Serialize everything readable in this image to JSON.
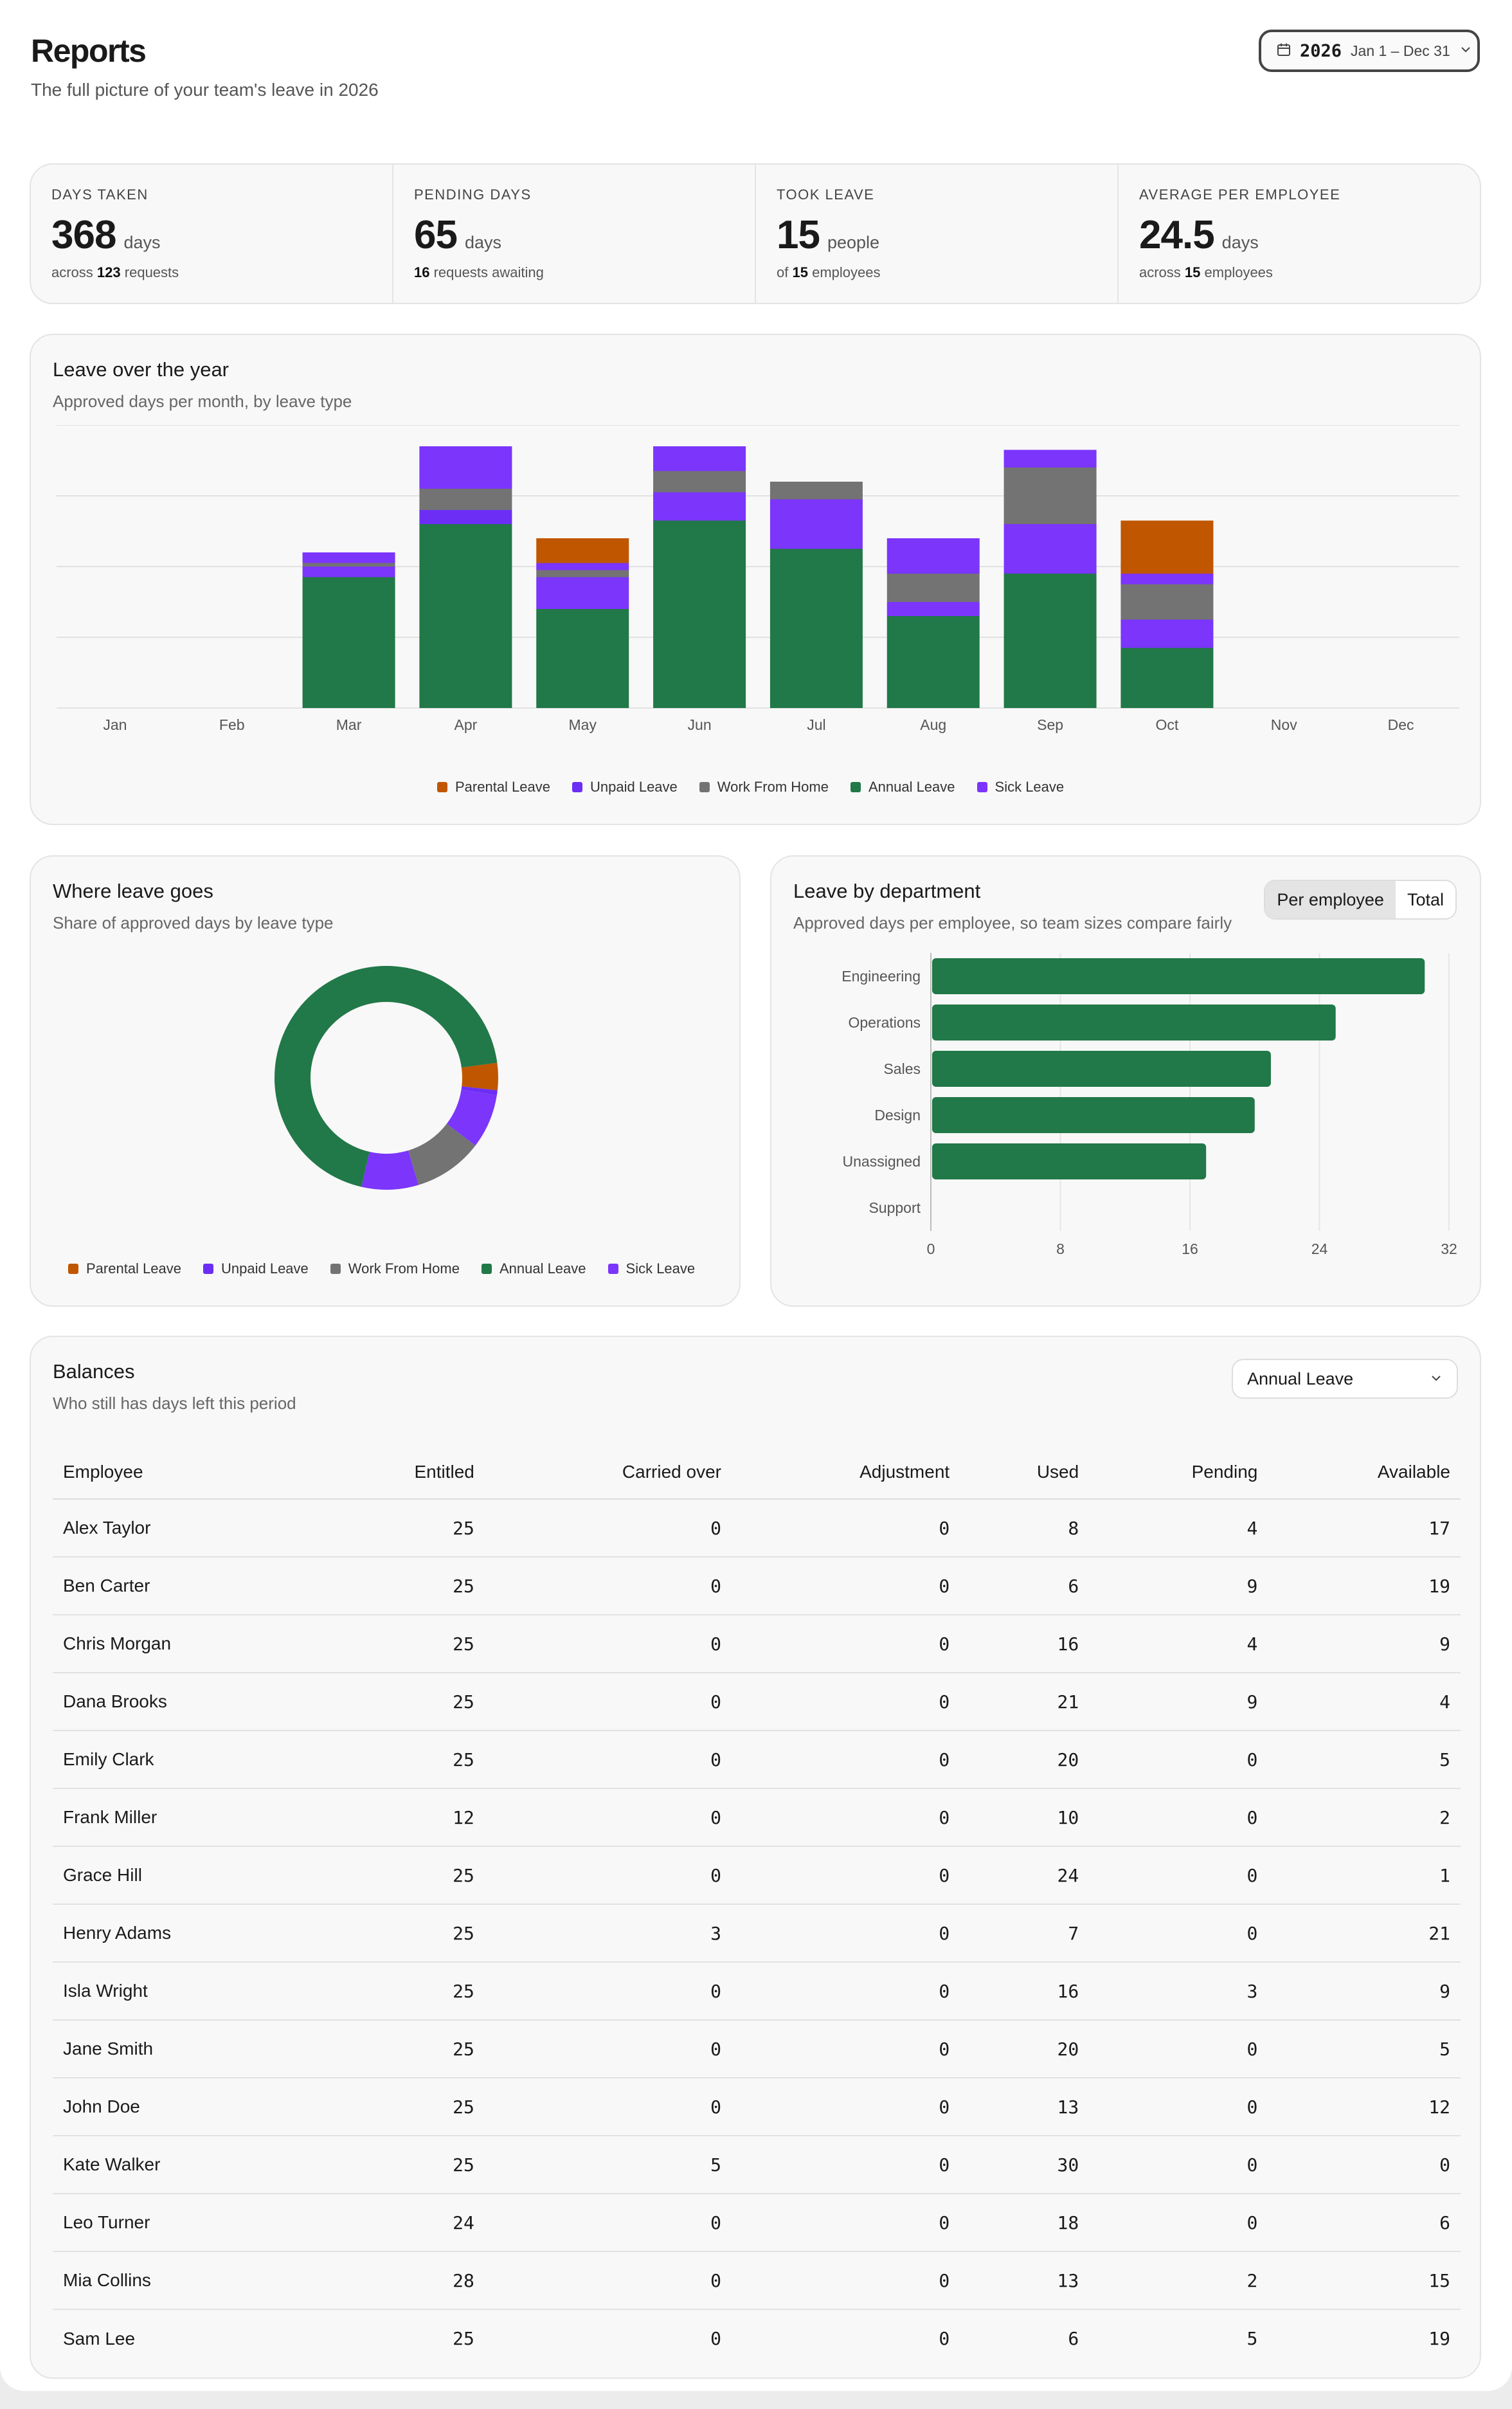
{
  "header": {
    "title": "Reports",
    "subtitle": "The full picture of your team's leave in 2026",
    "date_year": "2026",
    "date_range": "Jan 1 – Dec 31"
  },
  "stats": [
    {
      "label": "DAYS TAKEN",
      "value": "368",
      "unit": "days",
      "sub_pre": "across",
      "sub_bold": "123",
      "sub_post": "requests"
    },
    {
      "label": "PENDING DAYS",
      "value": "65",
      "unit": "days",
      "sub_pre": "",
      "sub_bold": "16",
      "sub_post": "requests awaiting"
    },
    {
      "label": "TOOK LEAVE",
      "value": "15",
      "unit": "people",
      "sub_pre": "of",
      "sub_bold": "15",
      "sub_post": "employees"
    },
    {
      "label": "AVERAGE PER EMPLOYEE",
      "value": "24.5",
      "unit": "days",
      "sub_pre": "across",
      "sub_bold": "15",
      "sub_post": "employees"
    }
  ],
  "colors": {
    "parental": "#c05600",
    "unpaid": "#6c2ef5",
    "wfh": "#737373",
    "annual": "#217848",
    "sick": "#7b35fb"
  },
  "legend": [
    {
      "name": "Parental Leave",
      "key": "parental"
    },
    {
      "name": "Unpaid Leave",
      "key": "unpaid"
    },
    {
      "name": "Work From Home",
      "key": "wfh"
    },
    {
      "name": "Annual Leave",
      "key": "annual"
    },
    {
      "name": "Sick Leave",
      "key": "sick"
    }
  ],
  "year_card": {
    "title": "Leave over the year",
    "subtitle": "Approved days per month, by leave type"
  },
  "donut_card": {
    "title": "Where leave goes",
    "subtitle": "Share of approved days by leave type"
  },
  "dept_card": {
    "title": "Leave by department",
    "subtitle": "Approved days per employee, so team sizes compare fairly",
    "toggle": [
      "Per employee",
      "Total"
    ]
  },
  "chart_data": [
    {
      "type": "bar",
      "stacked": true,
      "categories": [
        "Jan",
        "Feb",
        "Mar",
        "Apr",
        "May",
        "Jun",
        "Jul",
        "Aug",
        "Sep",
        "Oct",
        "Nov",
        "Dec"
      ],
      "series": [
        {
          "name": "Annual Leave",
          "key": "annual",
          "values": [
            0,
            0,
            18.5,
            26,
            14,
            26.5,
            22.5,
            13,
            19,
            8.5,
            0,
            0
          ]
        },
        {
          "name": "Unpaid Leave",
          "key": "unpaid",
          "values": [
            0,
            0,
            0,
            2,
            0,
            0,
            0,
            0,
            0,
            0,
            0,
            0
          ]
        },
        {
          "name": "Sick Leave",
          "key": "sick",
          "values": [
            0,
            0,
            1.5,
            0,
            4.5,
            4,
            7,
            2,
            7,
            4,
            0,
            0
          ]
        },
        {
          "name": "Work From Home",
          "key": "wfh",
          "values": [
            0,
            0,
            0.5,
            3,
            1,
            3,
            2.5,
            4,
            8,
            5,
            0,
            0
          ]
        },
        {
          "name": "Sick Leave",
          "key": "sick",
          "values": [
            0,
            0,
            1.5,
            6,
            1,
            3.5,
            0,
            5,
            2.5,
            1.5,
            0,
            0
          ]
        },
        {
          "name": "Parental Leave",
          "key": "parental",
          "values": [
            0,
            0,
            0,
            0,
            3.5,
            0,
            0,
            0,
            0,
            7.5,
            0,
            0
          ]
        }
      ],
      "grid": true,
      "ylim": [
        0,
        40
      ]
    },
    {
      "type": "pie",
      "donut": true,
      "labels": [
        "Parental Leave",
        "Unpaid Leave",
        "Work From Home",
        "Annual Leave",
        "Sick Leave"
      ],
      "keys": [
        "parental",
        "unpaid",
        "wfh",
        "annual",
        "sick"
      ],
      "values": [
        11,
        2,
        28,
        194,
        45
      ],
      "slices_clockwise_from_top": [
        {
          "key": "annual",
          "value": 64
        },
        {
          "key": "parental",
          "value": 11
        },
        {
          "key": "unpaid",
          "value": 2
        },
        {
          "key": "sick",
          "value": 22
        },
        {
          "key": "wfh",
          "value": 28
        },
        {
          "key": "sick",
          "value": 23
        },
        {
          "key": "annual",
          "value": 130
        }
      ]
    },
    {
      "type": "bar",
      "orientation": "horizontal",
      "categories": [
        "Engineering",
        "Operations",
        "Sales",
        "Design",
        "Unassigned",
        "Support"
      ],
      "values": [
        30.5,
        25,
        21,
        20,
        17,
        0
      ],
      "xticks": [
        0,
        8,
        16,
        24,
        32
      ],
      "xlim": [
        0,
        32
      ],
      "grid": true
    }
  ],
  "balances": {
    "title": "Balances",
    "subtitle": "Who still has days left this period",
    "filter": "Annual Leave",
    "columns": [
      "Employee",
      "Entitled",
      "Carried over",
      "Adjustment",
      "Used",
      "Pending",
      "Available"
    ],
    "rows": [
      [
        "Alex Taylor",
        "25",
        "0",
        "0",
        "8",
        "4",
        "17"
      ],
      [
        "Ben Carter",
        "25",
        "0",
        "0",
        "6",
        "9",
        "19"
      ],
      [
        "Chris Morgan",
        "25",
        "0",
        "0",
        "16",
        "4",
        "9"
      ],
      [
        "Dana Brooks",
        "25",
        "0",
        "0",
        "21",
        "9",
        "4"
      ],
      [
        "Emily Clark",
        "25",
        "0",
        "0",
        "20",
        "0",
        "5"
      ],
      [
        "Frank Miller",
        "12",
        "0",
        "0",
        "10",
        "0",
        "2"
      ],
      [
        "Grace Hill",
        "25",
        "0",
        "0",
        "24",
        "0",
        "1"
      ],
      [
        "Henry Adams",
        "25",
        "3",
        "0",
        "7",
        "0",
        "21"
      ],
      [
        "Isla Wright",
        "25",
        "0",
        "0",
        "16",
        "3",
        "9"
      ],
      [
        "Jane Smith",
        "25",
        "0",
        "0",
        "20",
        "0",
        "5"
      ],
      [
        "John Doe",
        "25",
        "0",
        "0",
        "13",
        "0",
        "12"
      ],
      [
        "Kate Walker",
        "25",
        "5",
        "0",
        "30",
        "0",
        "0"
      ],
      [
        "Leo Turner",
        "24",
        "0",
        "0",
        "18",
        "0",
        "6"
      ],
      [
        "Mia Collins",
        "28",
        "0",
        "0",
        "13",
        "2",
        "15"
      ],
      [
        "Sam Lee",
        "25",
        "0",
        "0",
        "6",
        "5",
        "19"
      ]
    ]
  }
}
